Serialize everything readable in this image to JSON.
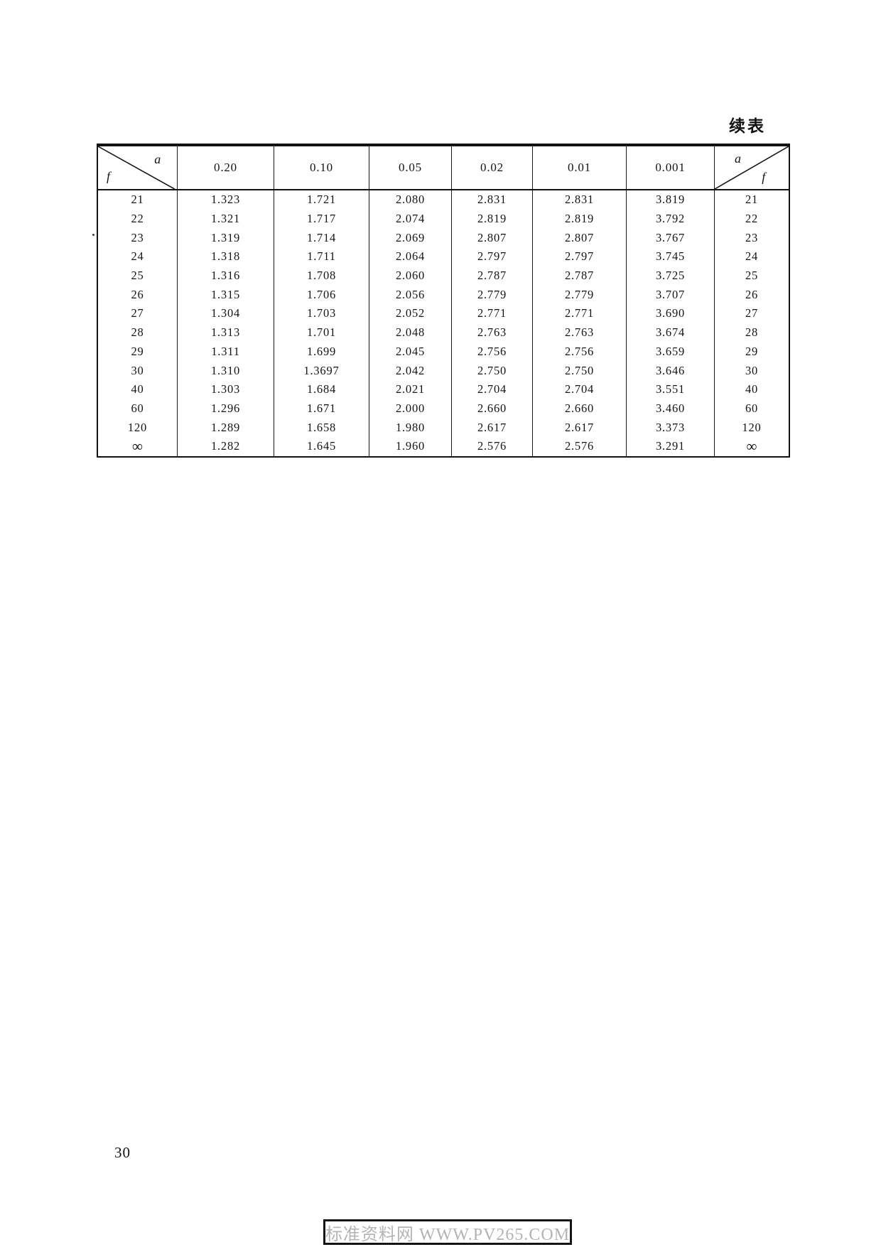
{
  "page": {
    "continued_label": "续表",
    "page_number": "30"
  },
  "watermark": {
    "text": "标准资料网 WWW.PV265.COM"
  },
  "table": {
    "corner_top": "a",
    "corner_bottom": "f",
    "columns": [
      "0.20",
      "0.10",
      "0.05",
      "0.02",
      "0.01",
      "0.001"
    ],
    "rows": [
      {
        "f": "21",
        "values": [
          "1.323",
          "1.721",
          "2.080",
          "2.831",
          "2.831",
          "3.819"
        ]
      },
      {
        "f": "22",
        "values": [
          "1.321",
          "1.717",
          "2.074",
          "2.819",
          "2.819",
          "3.792"
        ]
      },
      {
        "f": "23",
        "values": [
          "1.319",
          "1.714",
          "2.069",
          "2.807",
          "2.807",
          "3.767"
        ]
      },
      {
        "f": "24",
        "values": [
          "1.318",
          "1.711",
          "2.064",
          "2.797",
          "2.797",
          "3.745"
        ]
      },
      {
        "f": "25",
        "values": [
          "1.316",
          "1.708",
          "2.060",
          "2.787",
          "2.787",
          "3.725"
        ]
      },
      {
        "f": "26",
        "values": [
          "1.315",
          "1.706",
          "2.056",
          "2.779",
          "2.779",
          "3.707"
        ]
      },
      {
        "f": "27",
        "values": [
          "1.304",
          "1.703",
          "2.052",
          "2.771",
          "2.771",
          "3.690"
        ]
      },
      {
        "f": "28",
        "values": [
          "1.313",
          "1.701",
          "2.048",
          "2.763",
          "2.763",
          "3.674"
        ]
      },
      {
        "f": "29",
        "values": [
          "1.311",
          "1.699",
          "2.045",
          "2.756",
          "2.756",
          "3.659"
        ]
      },
      {
        "f": "30",
        "values": [
          "1.310",
          "1.3697",
          "2.042",
          "2.750",
          "2.750",
          "3.646"
        ]
      },
      {
        "f": "40",
        "values": [
          "1.303",
          "1.684",
          "2.021",
          "2.704",
          "2.704",
          "3.551"
        ]
      },
      {
        "f": "60",
        "values": [
          "1.296",
          "1.671",
          "2.000",
          "2.660",
          "2.660",
          "3.460"
        ]
      },
      {
        "f": "120",
        "values": [
          "1.289",
          "1.658",
          "1.980",
          "2.617",
          "2.617",
          "3.373"
        ]
      },
      {
        "f": "∞",
        "values": [
          "1.282",
          "1.645",
          "1.960",
          "2.576",
          "2.576",
          "3.291"
        ]
      }
    ]
  }
}
